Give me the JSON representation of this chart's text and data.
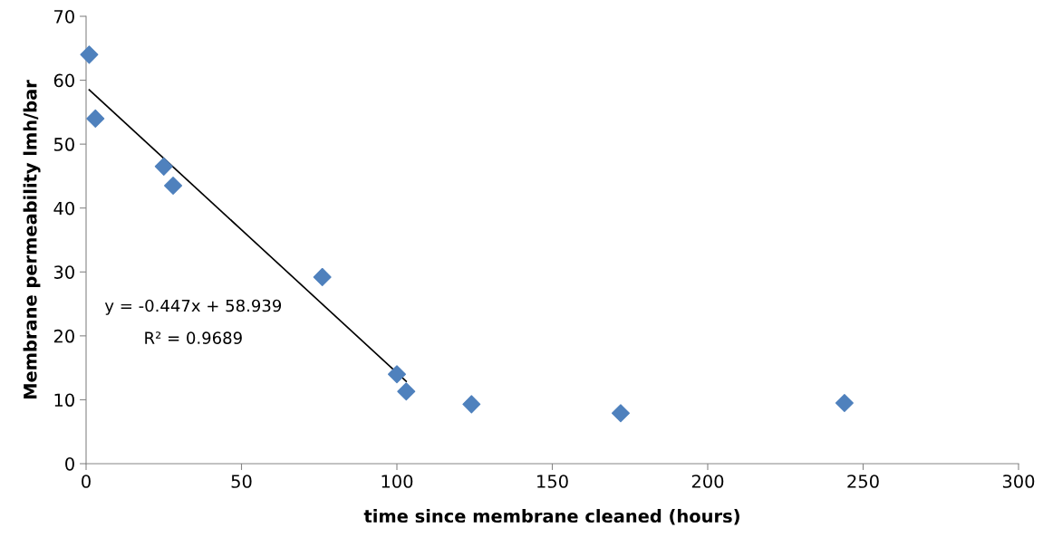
{
  "chart_data": {
    "type": "scatter",
    "xlabel": "time since membrane cleaned (hours)",
    "ylabel": "Membrane permeability lmh/bar",
    "series": [
      {
        "color": "#4f81bd",
        "marker": "diamond",
        "x": [
          1,
          3,
          25,
          28,
          76,
          100,
          103,
          124,
          172,
          244
        ],
        "values": [
          64.0,
          54.0,
          46.5,
          43.5,
          29.2,
          14.0,
          11.3,
          9.3,
          7.9,
          9.5
        ]
      },
      {
        "type": "line",
        "color": "#000000",
        "marker": "none",
        "line_style": "solid",
        "x": [
          1,
          103
        ],
        "values": [
          58.5,
          12.9
        ]
      }
    ],
    "annotations": [
      "y = -0.447x + 58.939",
      "R² = 0.9689"
    ],
    "xlim": [
      0,
      300
    ],
    "xticks": [
      0,
      50,
      100,
      150,
      200,
      250,
      300
    ],
    "ylim": [
      0,
      70
    ],
    "yticks": [
      0,
      10,
      20,
      30,
      40,
      50,
      60,
      70
    ],
    "grid": false,
    "legend": false
  }
}
